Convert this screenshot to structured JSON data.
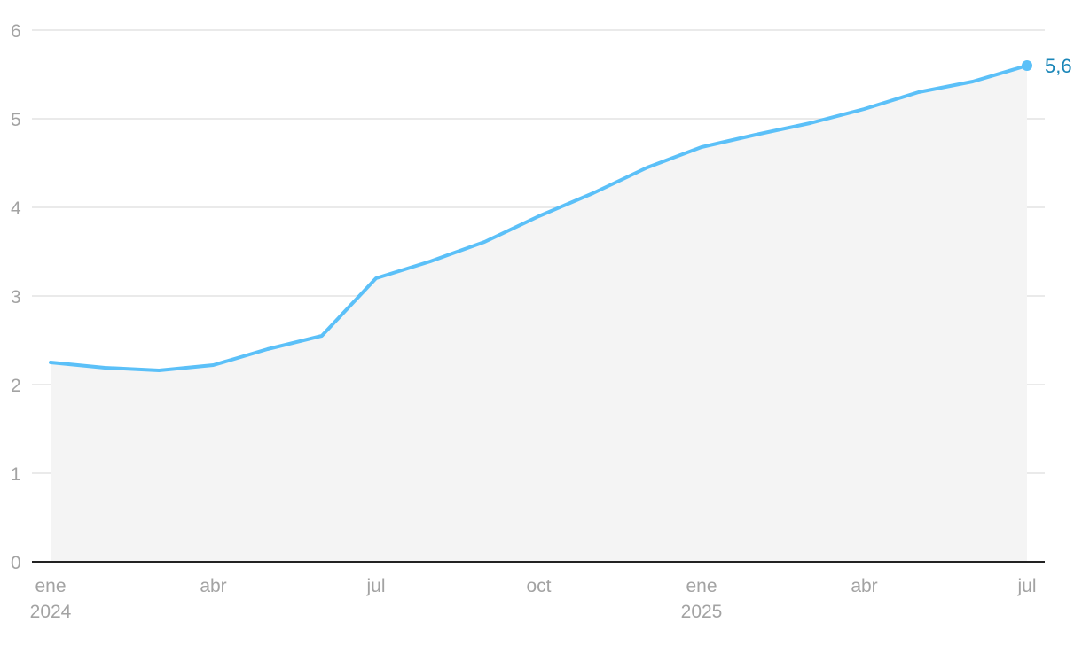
{
  "chart_data": {
    "type": "area",
    "title": "",
    "xlabel": "",
    "ylabel": "",
    "x": [
      "2024-01",
      "2024-02",
      "2024-03",
      "2024-04",
      "2024-05",
      "2024-06",
      "2024-07",
      "2024-08",
      "2024-09",
      "2024-10",
      "2024-11",
      "2024-12",
      "2025-01",
      "2025-02",
      "2025-03",
      "2025-04",
      "2025-05",
      "2025-06",
      "2025-07"
    ],
    "series": [
      {
        "values": [
          2.25,
          2.19,
          2.16,
          2.22,
          2.4,
          2.55,
          3.2,
          3.39,
          3.61,
          3.9,
          4.16,
          4.45,
          4.68,
          4.82,
          4.95,
          5.11,
          5.3,
          5.42,
          5.6
        ],
        "color": "#5bc0f8"
      }
    ],
    "end_label": "5,6",
    "ylim": [
      0,
      6
    ],
    "y_ticks": [
      {
        "value": 0,
        "label": "0"
      },
      {
        "value": 1,
        "label": "1"
      },
      {
        "value": 2,
        "label": "2"
      },
      {
        "value": 3,
        "label": "3"
      },
      {
        "value": 4,
        "label": "4"
      },
      {
        "value": 5,
        "label": "5"
      },
      {
        "value": 6,
        "label": "6"
      }
    ],
    "x_ticks": [
      {
        "x": "2024-01",
        "label": "ene",
        "year": "2024"
      },
      {
        "x": "2024-04",
        "label": "abr",
        "year": ""
      },
      {
        "x": "2024-07",
        "label": "jul",
        "year": ""
      },
      {
        "x": "2024-10",
        "label": "oct",
        "year": ""
      },
      {
        "x": "2025-01",
        "label": "ene",
        "year": "2025"
      },
      {
        "x": "2025-04",
        "label": "abr",
        "year": ""
      },
      {
        "x": "2025-07",
        "label": "jul",
        "year": ""
      }
    ],
    "grid": true,
    "area_color": "#f4f4f4",
    "label_color": "#1a86b8"
  }
}
